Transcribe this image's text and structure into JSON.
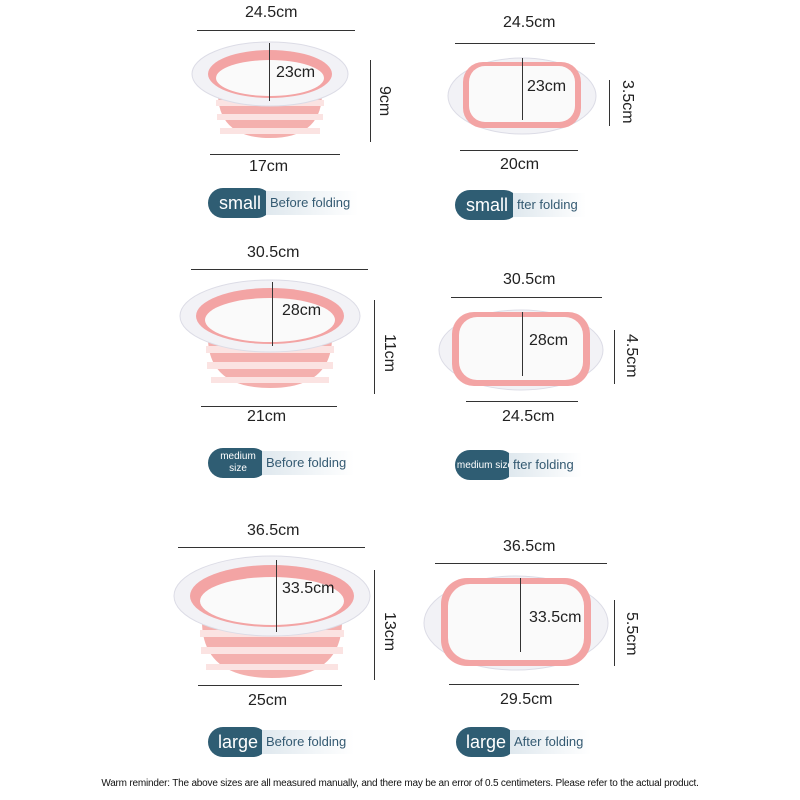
{
  "rows": [
    {
      "before": {
        "top_width": "24.5cm",
        "inner_width": "23cm",
        "height": "9cm",
        "bottom_width": "17cm"
      },
      "after": {
        "top_width": "24.5cm",
        "inner_width": "23cm",
        "height": "3.5cm",
        "bottom_width": "20cm"
      },
      "size_label": "small"
    },
    {
      "before": {
        "top_width": "30.5cm",
        "inner_width": "28cm",
        "height": "11cm",
        "bottom_width": "21cm"
      },
      "after": {
        "top_width": "30.5cm",
        "inner_width": "28cm",
        "height": "4.5cm",
        "bottom_width": "24.5cm"
      },
      "size_label_line1": "medium",
      "size_label_line2": "size",
      "size_label": "medium size"
    },
    {
      "before": {
        "top_width": "36.5cm",
        "inner_width": "33.5cm",
        "height": "13cm",
        "bottom_width": "25cm"
      },
      "after": {
        "top_width": "36.5cm",
        "inner_width": "33.5cm",
        "height": "5.5cm",
        "bottom_width": "29.5cm"
      },
      "size_label": "large"
    }
  ],
  "labels": {
    "before": "Before folding",
    "after": "After folding",
    "after_cut": "fter folding"
  },
  "note": "Warm reminder: The above sizes are all measured manually, and there may be an error of 0.5 centimeters. Please refer to the actual product.",
  "colors": {
    "pink": "#f2a5a5",
    "pink_light": "#f7c9c7",
    "rim": "#ffffff",
    "tag": "#2f5d73"
  }
}
